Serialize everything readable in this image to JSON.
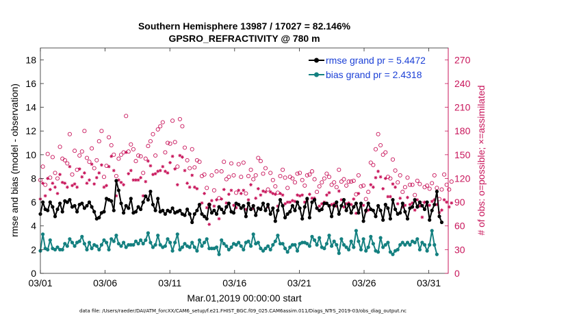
{
  "chart_data": {
    "type": "line",
    "title_line1": "Southern Hemisphere 13987 / 17027 = 82.146%",
    "title_line2": "GPSRO_REFRACTIVITY @ 780 m",
    "xlabel": "Mar.01,2019 00:00:00 start",
    "ylabel_left": "rmse and bias (model - observation)",
    "ylabel_right": "# of obs: o=possible; ×=assimilated",
    "footnote": "data file: /Users/raeder/DAI/ATM_forcXX/CAM6_setup/f.e21.FHIST_BGC.f09_025.CAM6assim.011/Diags_NTrS_2019-03/obs_diag_output.nc",
    "x_ticks": [
      "03/01",
      "03/06",
      "03/11",
      "03/16",
      "03/21",
      "03/26",
      "03/31"
    ],
    "x_tick_days": [
      0,
      5,
      10,
      15,
      20,
      25,
      30
    ],
    "xlim": [
      0,
      31.5
    ],
    "ylim_left": [
      0,
      19
    ],
    "y_ticks_left": [
      "0",
      "2",
      "4",
      "6",
      "8",
      "10",
      "12",
      "14",
      "16",
      "18"
    ],
    "ylim_right": [
      0,
      285
    ],
    "y_ticks_right": [
      "0",
      "30",
      "60",
      "90",
      "120",
      "150",
      "180",
      "210",
      "240",
      "270"
    ],
    "colors": {
      "rmse": "#000000",
      "bias": "#148080",
      "counts": "#c8145a",
      "legend_text": "#1a3fd6"
    },
    "series": [
      {
        "name": "rmse grand pr = 5.4472",
        "values": [
          5.0,
          6.0,
          5.4,
          5.3,
          6.0,
          5.6,
          4.8,
          5.4,
          5.9,
          5.2,
          6.1,
          6.0,
          6.2,
          5.6,
          5.7,
          5.2,
          5.8,
          5.9,
          5.5,
          5.7,
          6.0,
          5.6,
          5.2,
          4.6,
          4.7,
          5.1,
          5.2,
          6.3,
          6.2,
          6.1,
          5.3,
          7.8,
          7.0,
          5.9,
          5.1,
          5.7,
          5.5,
          6.3,
          5.1,
          5.2,
          5.6,
          5.4,
          6.0,
          6.5,
          6.2,
          6.9,
          5.8,
          5.3,
          6.3,
          5.2,
          5.3,
          5.0,
          5.3,
          5.2,
          5.5,
          5.1,
          5.2,
          5.3,
          5.0,
          4.9,
          5.4,
          5.0,
          4.3,
          5.0,
          5.3,
          5.8,
          5.0,
          4.8,
          4.6,
          5.8,
          5.1,
          5.3,
          5.0,
          5.6,
          5.4,
          5.1,
          5.6,
          5.9,
          5.2,
          5.1,
          5.9,
          5.8,
          5.5,
          5.7,
          4.8,
          5.9,
          5.4,
          5.7,
          4.9,
          5.5,
          5.4,
          5.9,
          5.3,
          5.8,
          5.0,
          5.5,
          4.4,
          5.3,
          6.2,
          5.7,
          4.7,
          5.0,
          5.2,
          5.7,
          5.3,
          6.0,
          5.5,
          4.6,
          5.6,
          6.3,
          4.7,
          6.0,
          6.2,
          5.5,
          5.3,
          5.4,
          5.9,
          5.9,
          5.7,
          4.8,
          5.7,
          6.0,
          5.0,
          5.7,
          6.2,
          5.3,
          5.8,
          5.1,
          5.6,
          5.9,
          5.1,
          5.9,
          4.4,
          5.3,
          5.9,
          5.4,
          5.3,
          4.8,
          5.7,
          5.3,
          4.5,
          5.8,
          5.5,
          4.6,
          6.2,
          5.4,
          5.0,
          5.1,
          5.9,
          5.2,
          4.6,
          5.5,
          5.6,
          6.2,
          5.6,
          6.0,
          5.7,
          5.4,
          6.0,
          4.5,
          5.3,
          5.8,
          6.9,
          4.8,
          4.3
        ]
      },
      {
        "name": "bias grand pr = 2.4318",
        "values": [
          1.9,
          3.3,
          2.1,
          2.0,
          2.8,
          2.1,
          2.0,
          2.2,
          2.0,
          2.0,
          2.5,
          2.3,
          2.9,
          2.6,
          2.3,
          2.6,
          2.7,
          3.1,
          2.5,
          2.0,
          2.6,
          2.1,
          2.4,
          2.3,
          2.0,
          2.4,
          2.8,
          2.6,
          2.0,
          2.9,
          2.7,
          3.2,
          2.5,
          2.3,
          2.6,
          2.2,
          2.4,
          2.4,
          2.4,
          2.7,
          2.5,
          2.8,
          2.5,
          2.8,
          3.4,
          2.6,
          2.2,
          2.4,
          3.2,
          2.4,
          2.2,
          2.3,
          2.9,
          2.6,
          1.9,
          2.6,
          3.3,
          2.0,
          2.2,
          2.5,
          2.3,
          2.2,
          2.6,
          2.2,
          1.9,
          2.8,
          2.3,
          2.6,
          2.9,
          2.1,
          2.1,
          2.1,
          2.2,
          1.6,
          2.8,
          2.5,
          2.3,
          2.0,
          2.2,
          2.5,
          2.4,
          2.6,
          2.3,
          2.0,
          2.6,
          2.7,
          2.3,
          3.3,
          2.5,
          2.6,
          2.1,
          1.9,
          2.1,
          2.3,
          2.0,
          2.4,
          2.7,
          3.2,
          2.5,
          2.5,
          2.1,
          1.8,
          2.2,
          2.4,
          2.4,
          1.9,
          2.5,
          2.6,
          2.6,
          2.5,
          2.3,
          3.1,
          2.8,
          2.4,
          3.0,
          2.2,
          2.1,
          2.5,
          3.2,
          2.3,
          2.7,
          2.4,
          1.7,
          2.9,
          2.4,
          2.2,
          2.0,
          2.7,
          2.2,
          3.6,
          2.7,
          2.0,
          2.9,
          1.9,
          2.2,
          3.1,
          2.5,
          1.9,
          1.8,
          3.0,
          2.2,
          2.4,
          2.6,
          1.8,
          1.6,
          1.9,
          2.0,
          2.4,
          2.6,
          2.4,
          2.6,
          2.4,
          2.7,
          2.6,
          2.9,
          2.0,
          2.6,
          2.4,
          1.9,
          2.4,
          3.6,
          2.4,
          1.6
        ]
      },
      {
        "name": "possible",
        "values": [
          118,
          135,
          112,
          151,
          121,
          147,
          127,
          120,
          160,
          145,
          143,
          139,
          176,
          125,
          155,
          131,
          149,
          154,
          180,
          146,
          141,
          158,
          133,
          143,
          167,
          180,
          122,
          136,
          172,
          162,
          150,
          123,
          145,
          150,
          153,
          199,
          154,
          163,
          157,
          142,
          149,
          148,
          127,
          145,
          161,
          167,
          176,
          149,
          182,
          186,
          191,
          153,
          165,
          164,
          193,
          166,
          135,
          195,
          186,
          159,
          143,
          133,
          157,
          134,
          143,
          141,
          123,
          125,
          108,
          87,
          124,
          105,
          129,
          95,
          129,
          141,
          119,
          122,
          139,
          124,
          102,
          138,
          122,
          140,
          101,
          123,
          131,
          119,
          124,
          146,
          142,
          126,
          133,
          106,
          127,
          118,
          110,
          102,
          123,
          131,
          121,
          108,
          122,
          120,
          115,
          126,
          127,
          118,
          111,
          124,
          125,
          129,
          119,
          103,
          110,
          115,
          120,
          126,
          122,
          112,
          115,
          109,
          131,
          116,
          119,
          111,
          116,
          116,
          117,
          100,
          124,
          110,
          111,
          94,
          103,
          140,
          137,
          157,
          176,
          162,
          150,
          153,
          122,
          120,
          144,
          130,
          115,
          124,
          103,
          109,
          121,
          112,
          112,
          99,
          117,
          113,
          88,
          109,
          111,
          107,
          114,
          124,
          108,
          94,
          106,
          125,
          112,
          106,
          116
        ]
      },
      {
        "name": "assimilated",
        "values": [
          94,
          114,
          98,
          120,
          106,
          114,
          109,
          101,
          125,
          115,
          114,
          109,
          135,
          111,
          113,
          109,
          132,
          122,
          127,
          114,
          118,
          138,
          113,
          121,
          127,
          137,
          109,
          111,
          135,
          148,
          130,
          98,
          118,
          115,
          112,
          153,
          126,
          130,
          118,
          118,
          118,
          121,
          98,
          116,
          142,
          136,
          125,
          126,
          129,
          130,
          135,
          129,
          127,
          140,
          148,
          132,
          112,
          149,
          147,
          130,
          114,
          109,
          124,
          109,
          107,
          86,
          89,
          101,
          83,
          62,
          92,
          85,
          93,
          69,
          94,
          106,
          89,
          100,
          105,
          86,
          83,
          105,
          101,
          105,
          81,
          93,
          112,
          82,
          95,
          107,
          99,
          104,
          103,
          84,
          103,
          101,
          100,
          85,
          101,
          99,
          88,
          90,
          90,
          92,
          91,
          99,
          98,
          99,
          90,
          93,
          100,
          95,
          95,
          82,
          85,
          88,
          90,
          99,
          102,
          87,
          88,
          85,
          104,
          93,
          84,
          88,
          89,
          87,
          94,
          76,
          101,
          88,
          86,
          78,
          80,
          112,
          109,
          121,
          129,
          122,
          107,
          120,
          97,
          97,
          113,
          109,
          88,
          95,
          84,
          86,
          96,
          87,
          89,
          80,
          93,
          85,
          71,
          90,
          86,
          86,
          91,
          93,
          87,
          77,
          80,
          93,
          90,
          84,
          89
        ]
      }
    ],
    "legend": [
      {
        "label": "rmse grand pr = 5.4472",
        "series": "rmse"
      },
      {
        "label": "bias grand pr = 2.4318",
        "series": "bias"
      }
    ]
  }
}
